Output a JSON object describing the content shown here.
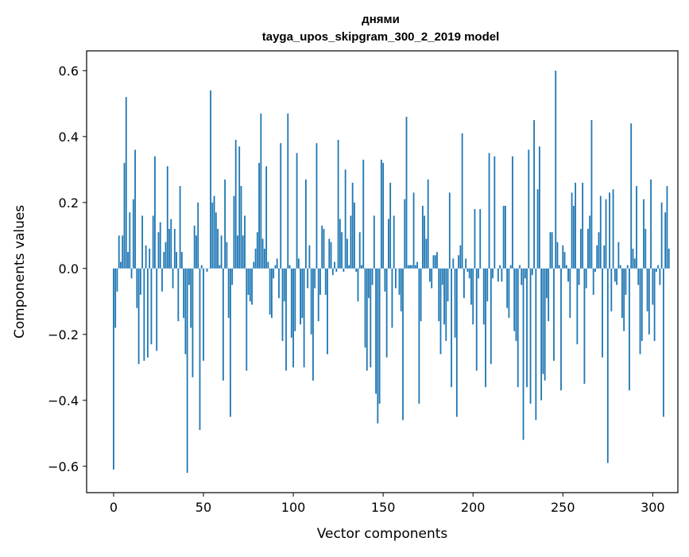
{
  "chart_data": {
    "type": "bar",
    "title": "днями",
    "subtitle": "tayga_upos_skipgram_300_2_2019 model",
    "xlabel": "Vector components",
    "ylabel": "Components values",
    "xlim": [
      -15,
      314
    ],
    "ylim": [
      -0.68,
      0.66
    ],
    "xticks": [
      0,
      50,
      100,
      150,
      200,
      250,
      300
    ],
    "xtick_labels": [
      "0",
      "50",
      "100",
      "150",
      "200",
      "250",
      "300"
    ],
    "yticks": [
      -0.6,
      -0.4,
      -0.2,
      0.0,
      0.2,
      0.4,
      0.6
    ],
    "ytick_labels": [
      "−0.6",
      "−0.4",
      "−0.2",
      "0.0",
      "0.2",
      "0.4",
      "0.6"
    ],
    "grid": false,
    "bar_color": "#1f77b4",
    "values": [
      -0.61,
      -0.18,
      -0.07,
      0.1,
      0.02,
      0.1,
      0.32,
      0.52,
      0.05,
      0.17,
      -0.03,
      0.21,
      0.36,
      -0.12,
      -0.29,
      -0.08,
      0.16,
      -0.28,
      0.07,
      -0.27,
      0.06,
      -0.23,
      0.16,
      0.34,
      -0.25,
      0.11,
      0.14,
      -0.07,
      0.05,
      0.08,
      0.31,
      0.12,
      0.15,
      -0.06,
      0.12,
      0.05,
      -0.16,
      0.25,
      0.05,
      -0.15,
      -0.26,
      -0.62,
      -0.05,
      -0.18,
      -0.33,
      0.13,
      0.1,
      0.2,
      -0.49,
      0.01,
      -0.28,
      0.0,
      -0.01,
      0.0,
      0.54,
      0.2,
      0.22,
      0.17,
      0.12,
      0.01,
      0.1,
      -0.34,
      0.27,
      0.08,
      -0.15,
      -0.45,
      -0.05,
      0.22,
      0.39,
      0.1,
      0.37,
      0.25,
      0.1,
      0.16,
      -0.31,
      -0.08,
      -0.1,
      -0.11,
      0.02,
      0.06,
      0.11,
      0.32,
      0.47,
      0.09,
      0.06,
      0.31,
      0.02,
      -0.14,
      -0.15,
      -0.03,
      0.01,
      0.03,
      -0.09,
      0.38,
      -0.22,
      -0.1,
      -0.31,
      0.47,
      0.01,
      -0.21,
      -0.3,
      -0.19,
      0.35,
      0.03,
      -0.17,
      -0.15,
      -0.3,
      0.27,
      -0.06,
      0.07,
      -0.2,
      -0.34,
      -0.06,
      0.38,
      -0.16,
      -0.08,
      0.13,
      0.12,
      -0.08,
      -0.26,
      0.09,
      0.08,
      -0.02,
      0.02,
      -0.01,
      0.39,
      0.15,
      0.11,
      -0.01,
      0.3,
      0.09,
      0.01,
      0.16,
      0.26,
      0.2,
      -0.01,
      -0.1,
      0.11,
      0.01,
      0.33,
      -0.24,
      -0.31,
      -0.09,
      -0.3,
      -0.05,
      0.16,
      -0.38,
      -0.47,
      -0.41,
      0.33,
      0.32,
      -0.07,
      -0.27,
      0.15,
      0.26,
      -0.18,
      0.16,
      -0.06,
      0.0,
      -0.08,
      -0.13,
      -0.46,
      0.21,
      0.46,
      0.01,
      0.01,
      0.01,
      0.23,
      0.01,
      0.02,
      -0.41,
      -0.16,
      0.19,
      0.16,
      0.09,
      0.27,
      -0.04,
      -0.06,
      0.04,
      0.04,
      0.05,
      -0.16,
      -0.26,
      -0.05,
      -0.17,
      -0.22,
      -0.1,
      0.23,
      -0.36,
      0.03,
      -0.21,
      -0.45,
      0.04,
      0.07,
      0.41,
      -0.09,
      0.03,
      -0.01,
      -0.03,
      -0.11,
      -0.17,
      0.18,
      -0.31,
      -0.03,
      0.18,
      0.0,
      -0.17,
      -0.36,
      -0.1,
      0.35,
      -0.29,
      -0.03,
      0.34,
      0.0,
      -0.04,
      0.01,
      -0.04,
      0.19,
      0.19,
      -0.12,
      -0.15,
      0.01,
      0.34,
      -0.19,
      -0.22,
      -0.36,
      0.01,
      -0.05,
      -0.52,
      -0.03,
      -0.36,
      0.36,
      -0.41,
      -0.02,
      0.45,
      -0.46,
      0.24,
      0.37,
      -0.4,
      -0.32,
      -0.34,
      -0.09,
      -0.16,
      0.11,
      0.11,
      -0.28,
      0.6,
      0.08,
      0.01,
      -0.37,
      0.07,
      0.05,
      0.01,
      -0.04,
      -0.15,
      0.23,
      0.19,
      0.26,
      -0.23,
      -0.05,
      0.12,
      0.26,
      -0.35,
      -0.06,
      0.12,
      0.16,
      0.45,
      -0.08,
      -0.01,
      0.07,
      0.11,
      0.22,
      -0.27,
      0.07,
      0.21,
      -0.59,
      0.23,
      -0.13,
      0.24,
      -0.04,
      -0.05,
      0.08,
      0.01,
      -0.15,
      -0.19,
      -0.08,
      0.01,
      -0.37,
      0.44,
      0.06,
      0.03,
      0.25,
      -0.05,
      -0.26,
      -0.22,
      0.21,
      0.12,
      -0.13,
      -0.2,
      0.27,
      -0.11,
      -0.22,
      -0.01,
      0.01,
      -0.05,
      0.2,
      -0.45,
      0.17,
      0.25,
      0.06
    ]
  }
}
